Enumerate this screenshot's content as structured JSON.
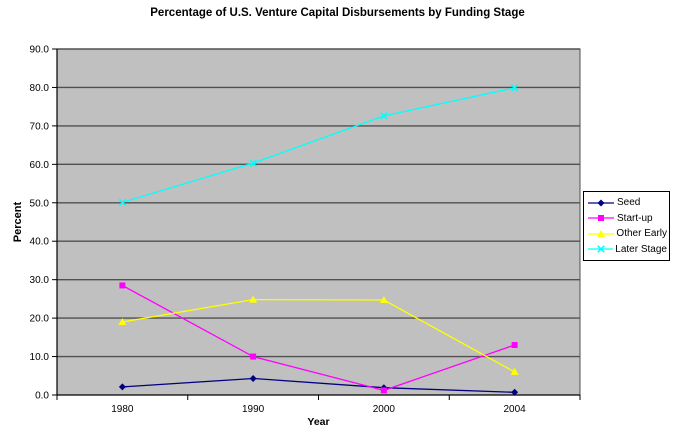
{
  "chart_data": {
    "type": "line",
    "title": "Percentage of U.S. Venture Capital Disbursements by Funding Stage",
    "xlabel": "Year",
    "ylabel": "Percent",
    "categories": [
      "1980",
      "1990",
      "2000",
      "2004"
    ],
    "y_ticks": [
      "0.0",
      "10.0",
      "20.0",
      "30.0",
      "40.0",
      "50.0",
      "60.0",
      "70.0",
      "80.0",
      "90.0"
    ],
    "ylim": [
      0,
      90
    ],
    "grid": true,
    "legend_position": "right",
    "colors": {
      "plot_background": "#c0c0c0",
      "gridline": "#505050",
      "axis": "#000000",
      "legend_border": "#000000",
      "page_background": "#ffffff"
    },
    "series": [
      {
        "name": "Seed",
        "color": "#000080",
        "marker": "diamond",
        "values": [
          2.1,
          4.3,
          1.9,
          0.7
        ]
      },
      {
        "name": "Start-up",
        "color": "#ff00ff",
        "marker": "square",
        "values": [
          28.5,
          10.0,
          1.2,
          13.0
        ]
      },
      {
        "name": "Other Early",
        "color": "#ffff00",
        "marker": "triangle",
        "values": [
          19.0,
          24.8,
          24.7,
          6.0
        ]
      },
      {
        "name": "Later Stage",
        "color": "#00ffff",
        "marker": "x",
        "values": [
          50.1,
          60.3,
          72.6,
          79.9
        ]
      }
    ]
  }
}
